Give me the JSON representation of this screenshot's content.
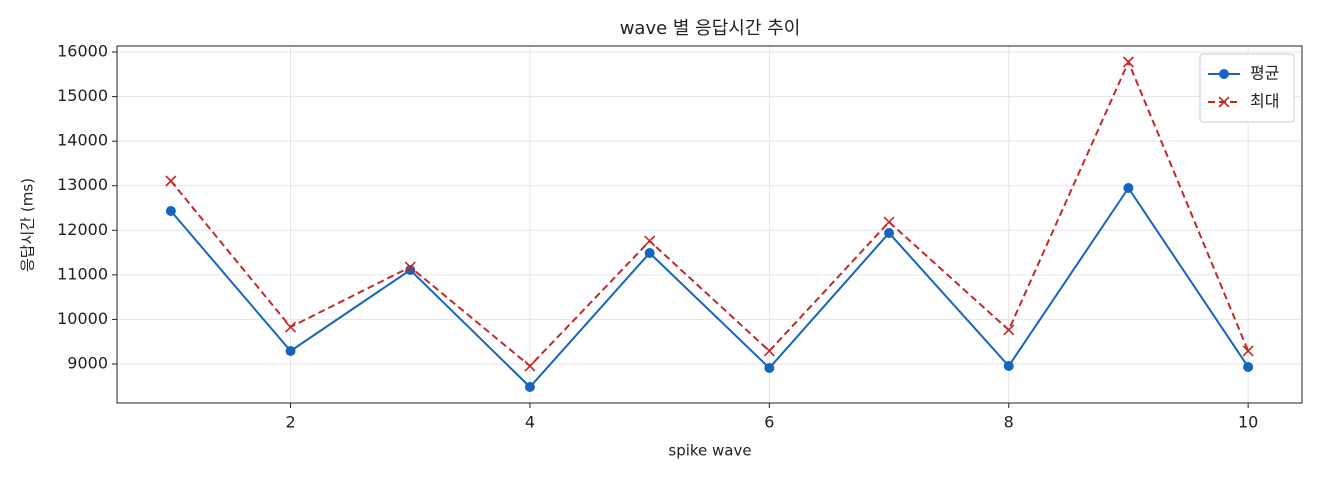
{
  "chart_data": {
    "type": "line",
    "title": "wave 별 응답시간 추이",
    "xlabel": "spike wave",
    "ylabel": "응답시간 (ms)",
    "x": [
      1,
      2,
      3,
      4,
      5,
      6,
      7,
      8,
      9,
      10
    ],
    "series": [
      {
        "name": "평균",
        "color": "#1565c0",
        "marker": "o",
        "dash": "solid",
        "values": [
          12433,
          9292,
          11109,
          8484,
          11490,
          8910,
          11939,
          8955,
          12949,
          8933
        ]
      },
      {
        "name": "최대",
        "color": "#c62828",
        "marker": "x",
        "dash": "dashed",
        "values": [
          13106,
          9830,
          11176,
          8955,
          11760,
          9292,
          12186,
          9763,
          15776,
          9292
        ]
      }
    ],
    "xlim": [
      0.55,
      10.45
    ],
    "ylim": [
      8125,
      16135
    ],
    "xticks": [
      2,
      4,
      6,
      8,
      10
    ],
    "yticks": [
      9000,
      10000,
      11000,
      12000,
      13000,
      14000,
      15000,
      16000
    ],
    "grid": true,
    "legend": "upper right"
  }
}
